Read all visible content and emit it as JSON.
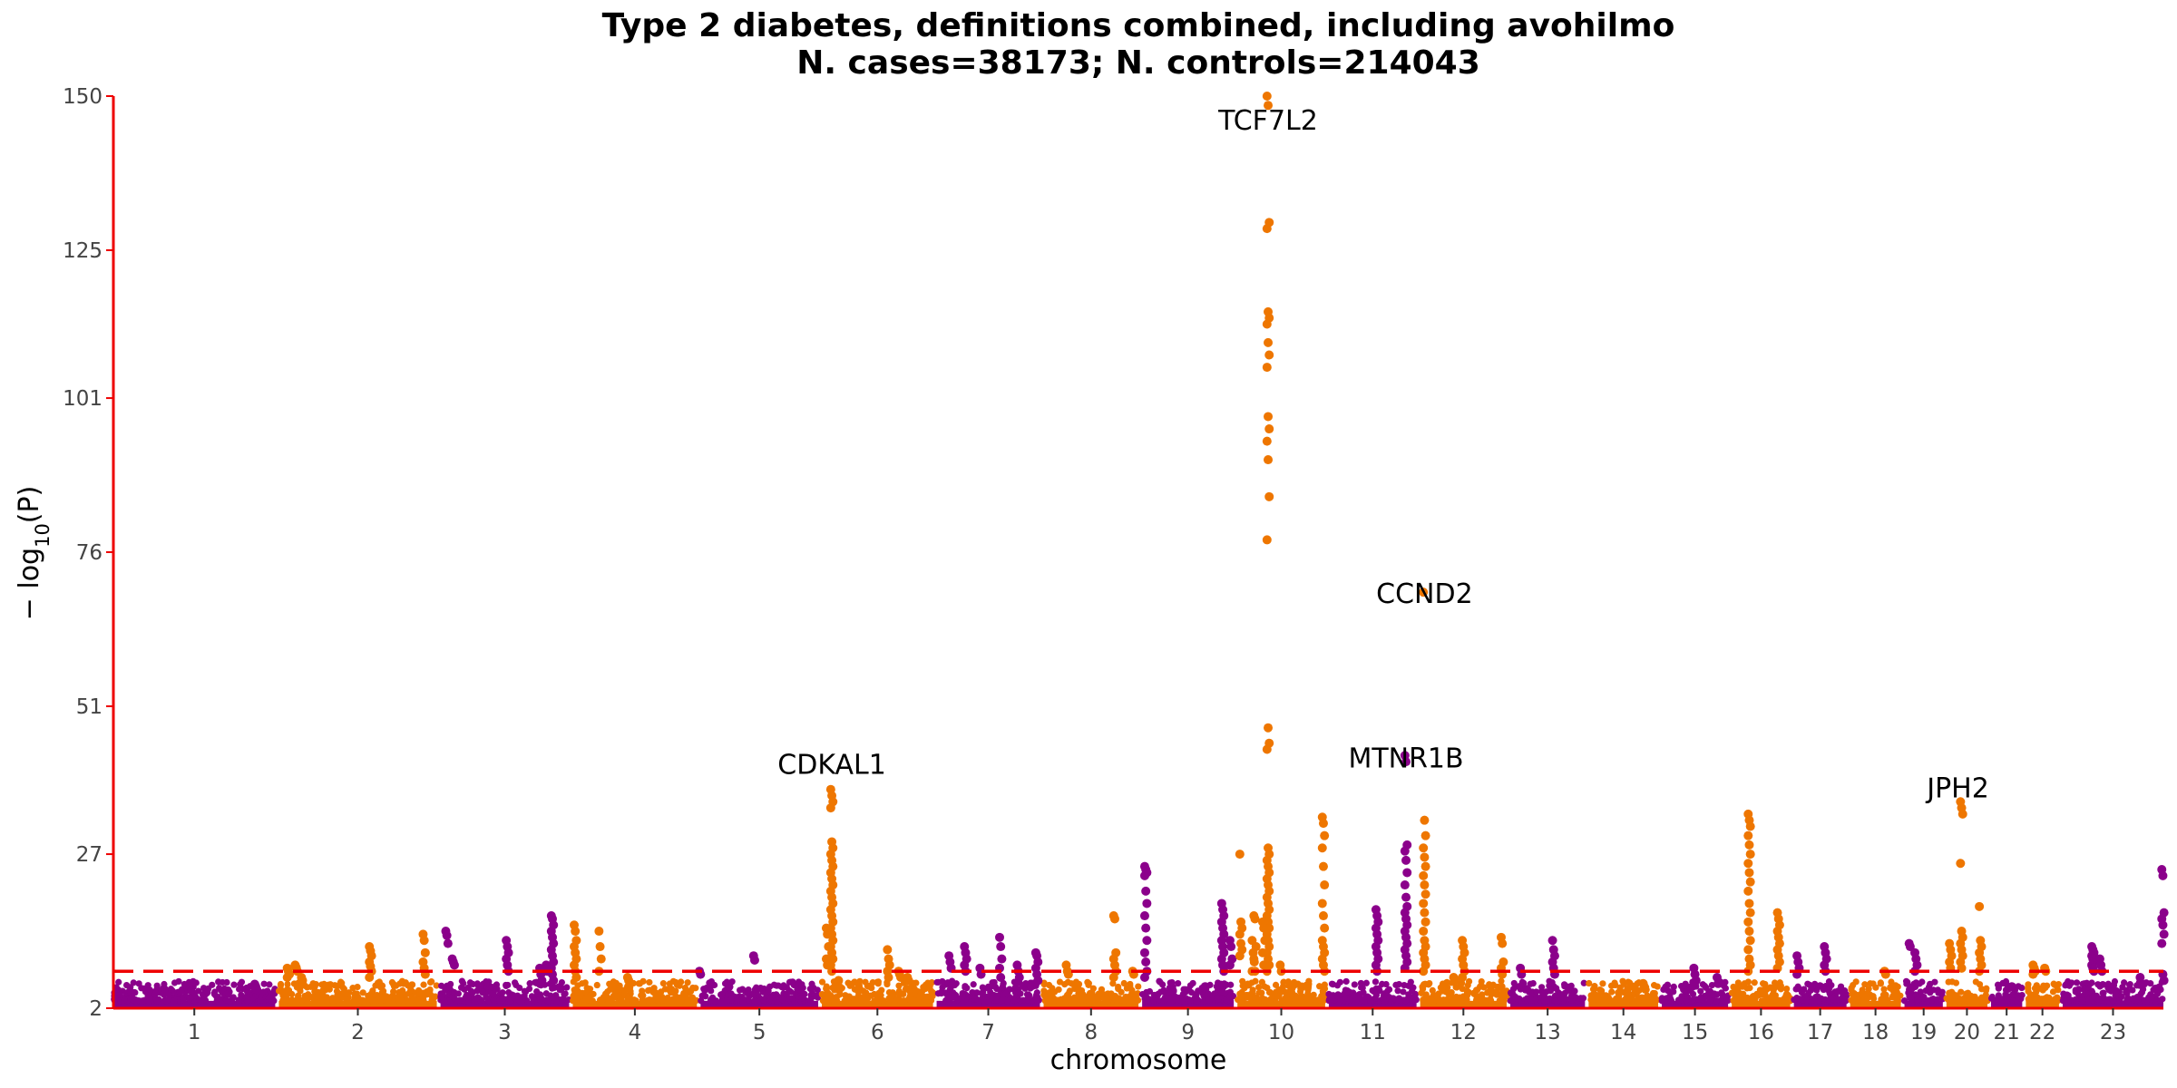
{
  "chart_data": {
    "type": "scatter",
    "subtype": "manhattan",
    "title": "Type 2 diabetes, definitions combined, including avohilmo",
    "subtitle": "N. cases=38173; N. controls=214043",
    "xlabel": "chromosome",
    "ylabel": "−log10(P)",
    "ylabel_parts": {
      "prefix": "− log",
      "sub": "10",
      "suffix": "(P)"
    },
    "ylim": [
      2,
      150
    ],
    "yticks": [
      2,
      27,
      51,
      76,
      101,
      125,
      150
    ],
    "significance_threshold": 8,
    "colors": {
      "odd": "#8b008b",
      "even": "#ee7600",
      "threshold": "#ee0000",
      "axis": "#ee0000"
    },
    "chromosomes": [
      {
        "label": "1",
        "length": 249
      },
      {
        "label": "2",
        "length": 243
      },
      {
        "label": "3",
        "length": 198
      },
      {
        "label": "4",
        "length": 191
      },
      {
        "label": "5",
        "length": 181
      },
      {
        "label": "6",
        "length": 171
      },
      {
        "label": "7",
        "length": 159
      },
      {
        "label": "8",
        "length": 146
      },
      {
        "label": "9",
        "length": 141
      },
      {
        "label": "10",
        "length": 135
      },
      {
        "label": "11",
        "length": 135
      },
      {
        "label": "12",
        "length": 133
      },
      {
        "label": "13",
        "length": 115
      },
      {
        "label": "14",
        "length": 107
      },
      {
        "label": "15",
        "length": 102
      },
      {
        "label": "16",
        "length": 90
      },
      {
        "label": "17",
        "length": 81
      },
      {
        "label": "18",
        "length": 78
      },
      {
        "label": "19",
        "length": 59
      },
      {
        "label": "20",
        "length": 63
      },
      {
        "label": "21",
        "length": 48
      },
      {
        "label": "22",
        "length": 51
      },
      {
        "label": "23",
        "length": 155
      }
    ],
    "peaks": [
      {
        "chr": "1",
        "pos": 0.88,
        "values": [
          5.9,
          5.5,
          5.0
        ]
      },
      {
        "chr": "1",
        "pos": 0.58,
        "values": [
          4.6
        ]
      },
      {
        "chr": "2",
        "pos": 0.06,
        "values": [
          8.5,
          8.0,
          7.5,
          7.0
        ]
      },
      {
        "chr": "2",
        "pos": 0.11,
        "values": [
          9.0,
          8.6,
          8.0
        ]
      },
      {
        "chr": "2",
        "pos": 0.15,
        "values": [
          7.0,
          6.5
        ]
      },
      {
        "chr": "2",
        "pos": 0.58,
        "values": [
          12.0,
          11.3,
          10.5,
          9.5,
          8.8,
          8.0,
          7.0
        ]
      },
      {
        "chr": "2",
        "pos": 0.92,
        "values": [
          14.0,
          13.0,
          11.0,
          9.5,
          8.5,
          7.5
        ]
      },
      {
        "chr": "3",
        "pos": 0.05,
        "values": [
          14.5,
          13.8,
          12.5
        ]
      },
      {
        "chr": "3",
        "pos": 0.1,
        "values": [
          10.0,
          9.5,
          9.0
        ]
      },
      {
        "chr": "3",
        "pos": 0.52,
        "values": [
          13.0,
          12.0,
          11.0,
          10.0,
          9.0,
          8.0
        ]
      },
      {
        "chr": "3",
        "pos": 0.78,
        "values": [
          8.5,
          7.5,
          6.5
        ]
      },
      {
        "chr": "3",
        "pos": 0.87,
        "values": [
          17.0,
          16.5,
          15.5,
          14.5,
          13.5,
          12.5,
          11.5,
          10.5,
          9.5,
          8.5,
          7.5,
          6.5
        ]
      },
      {
        "chr": "3",
        "pos": 0.83,
        "values": [
          9.0,
          8.0
        ]
      },
      {
        "chr": "4",
        "pos": 0.02,
        "values": [
          15.5,
          14.5,
          13.0,
          12.0,
          11.0,
          10.0,
          9.0,
          8.0,
          7.0
        ]
      },
      {
        "chr": "4",
        "pos": 0.22,
        "values": [
          14.5,
          12.0,
          10.0,
          8.0
        ]
      },
      {
        "chr": "4",
        "pos": 0.45,
        "values": [
          7.0,
          6.5
        ]
      },
      {
        "chr": "5",
        "pos": 0.0,
        "values": [
          8.0,
          7.5
        ]
      },
      {
        "chr": "5",
        "pos": 0.25,
        "values": [
          5.5
        ]
      },
      {
        "chr": "5",
        "pos": 0.46,
        "values": [
          10.5,
          9.8
        ]
      },
      {
        "chr": "6",
        "pos": 0.05,
        "values": [
          15.0,
          14.0,
          12.0,
          10.0,
          9.0
        ]
      },
      {
        "chr": "6",
        "pos": 0.09,
        "values": [
          37.5,
          36.5,
          35.5,
          34.5,
          29.0,
          28.0,
          27.0,
          26.0,
          25.0,
          24.0,
          23.0,
          22.0,
          21.0,
          20.0,
          19.0,
          18.0,
          17.0,
          16.0,
          15.0,
          14.0,
          13.0,
          12.0,
          11.0,
          10.0,
          9.0,
          8.0
        ]
      },
      {
        "chr": "6",
        "pos": 0.16,
        "values": [
          6.5
        ]
      },
      {
        "chr": "6",
        "pos": 0.6,
        "values": [
          11.5,
          10.0,
          9.0,
          8.0,
          7.0
        ]
      },
      {
        "chr": "6",
        "pos": 0.7,
        "values": [
          8.0,
          7.5,
          7.0
        ]
      },
      {
        "chr": "6",
        "pos": 0.78,
        "values": [
          7.0,
          6.5
        ]
      },
      {
        "chr": "7",
        "pos": 0.13,
        "values": [
          10.5,
          9.5,
          8.5
        ]
      },
      {
        "chr": "7",
        "pos": 0.28,
        "values": [
          12.0,
          11.0,
          10.0,
          9.0,
          8.0
        ]
      },
      {
        "chr": "7",
        "pos": 0.43,
        "values": [
          8.5,
          7.5
        ]
      },
      {
        "chr": "7",
        "pos": 0.62,
        "values": [
          13.5,
          12.0,
          10.0,
          8.5,
          7.0
        ]
      },
      {
        "chr": "7",
        "pos": 0.79,
        "values": [
          9.0,
          8.0,
          7.0
        ]
      },
      {
        "chr": "7",
        "pos": 0.97,
        "values": [
          11.0,
          10.5,
          9.5,
          8.5,
          7.5,
          6.5
        ]
      },
      {
        "chr": "8",
        "pos": 0.25,
        "values": [
          9.0,
          8.0,
          7.5
        ]
      },
      {
        "chr": "8",
        "pos": 0.75,
        "values": [
          17.0,
          16.5,
          11.0,
          10.0,
          9.0,
          8.0,
          7.0
        ]
      },
      {
        "chr": "8",
        "pos": 0.95,
        "values": [
          8.0,
          7.5
        ]
      },
      {
        "chr": "9",
        "pos": 0.04,
        "values": [
          25.0,
          24.5,
          24.0,
          23.5,
          21.0,
          19.0,
          17.0,
          15.0,
          13.0,
          11.0,
          9.5,
          8.0,
          7.0
        ]
      },
      {
        "chr": "9",
        "pos": 0.7,
        "values": [
          5.5
        ]
      },
      {
        "chr": "9",
        "pos": 0.88,
        "values": [
          19.0,
          18.0,
          17.0,
          16.0,
          15.0,
          14.0,
          13.0,
          12.0,
          11.0,
          10.0,
          9.0,
          8.0
        ]
      },
      {
        "chr": "9",
        "pos": 0.97,
        "values": [
          13.0,
          12.0,
          10.0,
          9.0
        ]
      },
      {
        "chr": "10",
        "pos": 0.04,
        "values": [
          27.0,
          16.0,
          15.0,
          14.0,
          12.5,
          11.5,
          10.5
        ]
      },
      {
        "chr": "10",
        "pos": 0.2,
        "values": [
          17.0,
          16.5,
          12.0,
          10.0,
          8.0
        ]
      },
      {
        "chr": "10",
        "pos": 0.18,
        "values": [
          13.0,
          11.0,
          9.5,
          8.0
        ]
      },
      {
        "chr": "10",
        "pos": 0.35,
        "values": [
          150.0,
          148.5,
          129.5,
          128.5,
          115.0,
          114.0,
          113.0,
          110.0,
          108.0,
          106.0,
          98.0,
          96.0,
          94.0,
          91.0,
          85.0,
          78.0,
          47.5,
          45.0,
          44.0,
          28.0,
          27.0,
          26.0,
          25.0,
          24.0,
          23.0,
          22.0,
          21.0,
          20.0,
          19.0,
          18.0,
          17.0,
          16.0,
          15.0,
          14.0,
          13.0,
          12.0,
          11.0,
          10.0,
          9.0,
          8.0
        ]
      },
      {
        "chr": "10",
        "pos": 0.3,
        "values": [
          16.0,
          15.0,
          13.0,
          11.0,
          9.0
        ]
      },
      {
        "chr": "10",
        "pos": 0.5,
        "values": [
          9.0,
          8.0
        ]
      },
      {
        "chr": "10",
        "pos": 0.98,
        "values": [
          33.0,
          32.0,
          30.0,
          28.0,
          25.0,
          22.0,
          19.0,
          17.0,
          15.0,
          13.0,
          12.0,
          11.0,
          10.0,
          9.0,
          8.0
        ]
      },
      {
        "chr": "11",
        "pos": 0.55,
        "values": [
          18.0,
          17.0,
          16.0,
          15.0,
          14.0,
          13.0,
          12.0,
          11.0,
          10.0,
          9.0,
          8.0
        ]
      },
      {
        "chr": "11",
        "pos": 0.88,
        "values": [
          43.0,
          42.0,
          28.5,
          27.5,
          26.0,
          24.0,
          22.0,
          20.0,
          18.5,
          17.5,
          16.5,
          15.5,
          14.5,
          13.5,
          12.5,
          11.5,
          10.5,
          9.5,
          8.5
        ]
      },
      {
        "chr": "12",
        "pos": 0.05,
        "values": [
          69.5,
          32.5,
          30.0,
          28.0,
          26.5,
          25.0,
          23.5,
          22.0,
          20.5,
          19.0,
          17.5,
          16.0,
          14.5,
          13.0,
          12.0,
          11.0,
          10.0,
          9.0,
          8.0
        ]
      },
      {
        "chr": "12",
        "pos": 0.4,
        "values": [
          7.0,
          6.5
        ]
      },
      {
        "chr": "12",
        "pos": 0.5,
        "values": [
          13.0,
          12.0,
          11.0,
          10.0,
          9.0,
          8.0,
          7.0
        ]
      },
      {
        "chr": "12",
        "pos": 0.95,
        "values": [
          13.5,
          12.5,
          9.5,
          8.5,
          7.5
        ]
      },
      {
        "chr": "13",
        "pos": 0.15,
        "values": [
          8.5,
          7.5
        ]
      },
      {
        "chr": "13",
        "pos": 0.58,
        "values": [
          13.0,
          11.5,
          10.5,
          9.5,
          8.5,
          7.5
        ]
      },
      {
        "chr": "14",
        "pos": 0.8,
        "values": [
          6.0,
          5.5
        ]
      },
      {
        "chr": "15",
        "pos": 0.5,
        "values": [
          8.5,
          7.5,
          6.5
        ]
      },
      {
        "chr": "15",
        "pos": 0.85,
        "values": [
          7.0,
          6.0
        ]
      },
      {
        "chr": "16",
        "pos": 0.3,
        "values": [
          33.5,
          32.5,
          31.5,
          30.0,
          28.5,
          27.0,
          25.5,
          24.0,
          22.5,
          21.0,
          19.0,
          17.5,
          16.0,
          14.5,
          13.0,
          11.5,
          10.0,
          9.0,
          8.0
        ]
      },
      {
        "chr": "16",
        "pos": 0.8,
        "values": [
          17.5,
          16.5,
          15.5,
          14.5,
          13.5,
          12.5,
          11.5,
          10.5,
          9.5,
          8.5
        ]
      },
      {
        "chr": "17",
        "pos": 0.08,
        "values": [
          10.5,
          9.5,
          8.5,
          7.5
        ]
      },
      {
        "chr": "17",
        "pos": 0.6,
        "values": [
          12.0,
          11.0,
          10.0,
          9.0,
          8.0
        ]
      },
      {
        "chr": "18",
        "pos": 0.7,
        "values": [
          8.0,
          7.5
        ]
      },
      {
        "chr": "19",
        "pos": 0.3,
        "values": [
          11.0,
          10.0,
          9.0,
          8.0
        ]
      },
      {
        "chr": "19",
        "pos": 0.15,
        "values": [
          12.5,
          12.0
        ]
      },
      {
        "chr": "20",
        "pos": 0.37,
        "values": [
          35.5,
          34.5,
          33.5,
          25.5,
          14.5,
          13.5,
          12.5,
          11.5,
          10.5,
          9.5,
          8.5
        ]
      },
      {
        "chr": "20",
        "pos": 0.1,
        "values": [
          12.5,
          11.5,
          10.5,
          9.5,
          8.5
        ]
      },
      {
        "chr": "20",
        "pos": 0.83,
        "values": [
          18.5,
          13.0,
          12.0,
          11.0,
          10.0,
          9.0,
          8.0
        ]
      },
      {
        "chr": "21",
        "pos": 0.7,
        "values": [
          5.5
        ]
      },
      {
        "chr": "22",
        "pos": 0.25,
        "values": [
          9.0,
          8.5,
          8.0,
          7.5
        ]
      },
      {
        "chr": "22",
        "pos": 0.6,
        "values": [
          8.5,
          8.0
        ]
      },
      {
        "chr": "23",
        "pos": 0.3,
        "values": [
          12.0,
          11.5,
          11.0,
          10.5,
          10.0,
          9.5,
          9.0,
          8.5,
          8.0
        ]
      },
      {
        "chr": "23",
        "pos": 0.38,
        "values": [
          10.0,
          9.0,
          8.0
        ]
      },
      {
        "chr": "23",
        "pos": 0.78,
        "values": [
          7.0,
          6.0
        ]
      },
      {
        "chr": "23",
        "pos": 0.995,
        "values": [
          24.5,
          23.5,
          17.5,
          16.5,
          15.5,
          14.0,
          12.5,
          7.5,
          6.5
        ]
      }
    ],
    "annotations": [
      {
        "text": "TCF7L2",
        "chr": "10",
        "pos": 0.35,
        "y": 150.0
      },
      {
        "text": "CCND2",
        "chr": "12",
        "pos": 0.05,
        "y": 69.5
      },
      {
        "text": "CDKAL1",
        "chr": "6",
        "pos": 0.09,
        "y": 37.5
      },
      {
        "text": "MTNR1B",
        "chr": "11",
        "pos": 0.88,
        "y": 43.0
      },
      {
        "text": "JPH2",
        "chr": "20",
        "pos": 0.37,
        "y": 35.5
      }
    ]
  }
}
